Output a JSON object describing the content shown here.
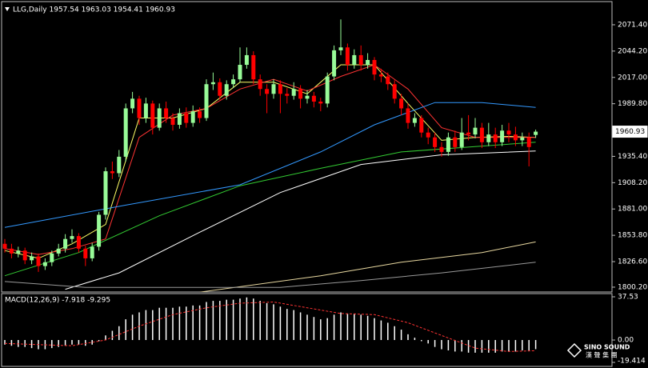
{
  "chart_data": [
    {
      "type": "candlestick",
      "title": "LLG,Daily  1957.54 1963.03 1954.41 1960.93",
      "up_color": "#98fb98",
      "down_color": "#ff0000",
      "open": [
        1845,
        1840,
        1835,
        1838,
        1828,
        1832,
        1822,
        1826,
        1835,
        1840,
        1850,
        1853,
        1840,
        1830,
        1842,
        1875,
        1920,
        1918,
        1935,
        1985,
        1995,
        1975,
        1990,
        1965,
        1985,
        1975,
        1968,
        1980,
        1970,
        1982,
        1975,
        2010,
        2012,
        1998,
        2010,
        2015,
        2030,
        2040,
        2015,
        2005,
        2000,
        2010,
        2000,
        1998,
        2005,
        1995,
        1998,
        1992,
        1990,
        2018,
        2045,
        2048,
        2030,
        2040,
        2030,
        2035,
        2020,
        2018,
        2010,
        1995,
        1985,
        1970,
        1975,
        1960,
        1955,
        1945,
        1940,
        1955,
        1945,
        1960,
        1958,
        1965,
        1950,
        1958,
        1950,
        1962,
        1958,
        1952,
        1955,
        1957.54
      ],
      "high": [
        1850,
        1845,
        1842,
        1841,
        1836,
        1835,
        1830,
        1838,
        1845,
        1855,
        1860,
        1856,
        1843,
        1846,
        1878,
        1924,
        1930,
        1942,
        1990,
        2002,
        1998,
        1996,
        1993,
        1990,
        1992,
        1980,
        1985,
        1986,
        1988,
        1986,
        2015,
        2022,
        2016,
        2014,
        2020,
        2048,
        2048,
        2044,
        2020,
        2010,
        2015,
        2014,
        2006,
        2012,
        2009,
        2004,
        2002,
        1996,
        2022,
        2050,
        2077,
        2052,
        2046,
        2050,
        2042,
        2038,
        2026,
        2022,
        2014,
        2000,
        1990,
        1980,
        1978,
        1965,
        1960,
        1950,
        1960,
        1962,
        1975,
        1978,
        1975,
        1970,
        1970,
        1965,
        1968,
        1970,
        1966,
        1960,
        1960,
        1963.03
      ],
      "low": [
        1836,
        1830,
        1831,
        1824,
        1824,
        1816,
        1818,
        1822,
        1832,
        1836,
        1846,
        1836,
        1822,
        1827,
        1838,
        1870,
        1912,
        1914,
        1930,
        1980,
        1968,
        1970,
        1958,
        1962,
        1970,
        1962,
        1964,
        1965,
        1966,
        1970,
        1972,
        2004,
        1994,
        1994,
        2006,
        2012,
        2026,
        2010,
        1998,
        1980,
        1995,
        1980,
        1990,
        1994,
        1985,
        1990,
        1986,
        1982,
        1986,
        2014,
        2040,
        2024,
        2026,
        2024,
        2026,
        2014,
        2012,
        2004,
        1990,
        1978,
        1964,
        1966,
        1955,
        1948,
        1940,
        1935,
        1936,
        1940,
        1942,
        1952,
        1954,
        1944,
        1946,
        1944,
        1946,
        1950,
        1946,
        1946,
        1925,
        1954.41
      ],
      "close": [
        1840,
        1835,
        1838,
        1828,
        1832,
        1822,
        1826,
        1835,
        1840,
        1850,
        1853,
        1840,
        1830,
        1842,
        1875,
        1920,
        1918,
        1935,
        1985,
        1995,
        1975,
        1990,
        1965,
        1985,
        1975,
        1968,
        1980,
        1970,
        1982,
        1975,
        2010,
        2012,
        1998,
        2010,
        2015,
        2030,
        2040,
        2015,
        2005,
        2000,
        2010,
        2000,
        1998,
        2005,
        1995,
        1998,
        1992,
        1990,
        2018,
        2045,
        2048,
        2030,
        2040,
        2030,
        2035,
        2020,
        2018,
        2010,
        1995,
        1985,
        1970,
        1975,
        1960,
        1955,
        1945,
        1940,
        1955,
        1945,
        1960,
        1958,
        1965,
        1950,
        1958,
        1950,
        1962,
        1958,
        1952,
        1955,
        1945,
        1960.93
      ],
      "series": [
        {
          "color": "#ffff66",
          "x": [
            0,
            5,
            10,
            15,
            20,
            25,
            30,
            35,
            40,
            45,
            50,
            55,
            60,
            65,
            70,
            75,
            79
          ],
          "values": [
            1838,
            1830,
            1845,
            1865,
            1975,
            1975,
            1985,
            2012,
            2012,
            2000,
            2030,
            2030,
            1990,
            1952,
            1955,
            1956,
            1955
          ]
        },
        {
          "color": "#ff3333",
          "x": [
            0,
            5,
            10,
            15,
            20,
            25,
            30,
            35,
            40,
            45,
            50,
            55,
            60,
            65,
            70,
            75,
            79
          ],
          "values": [
            1840,
            1834,
            1840,
            1850,
            1955,
            1978,
            1985,
            2005,
            2015,
            2003,
            2018,
            2030,
            2005,
            1965,
            1955,
            1955,
            1955
          ]
        },
        {
          "color": "#3399ff",
          "x": [
            0,
            18,
            35,
            47,
            55,
            64,
            71,
            79
          ],
          "values": [
            1862,
            1885,
            1906,
            1940,
            1968,
            1991,
            1991,
            1986
          ]
        },
        {
          "color": "#33cc33",
          "x": [
            0,
            11,
            23,
            35,
            47,
            59,
            71,
            79
          ],
          "values": [
            1812,
            1836,
            1874,
            1905,
            1923,
            1940,
            1946,
            1950
          ]
        },
        {
          "color": "#ffffff",
          "x": [
            9,
            17,
            29,
            41,
            53,
            65,
            79
          ],
          "values": [
            1798,
            1815,
            1857,
            1898,
            1927,
            1937,
            1941
          ]
        },
        {
          "color": "#e8d8a0",
          "x": [
            29,
            47,
            59,
            71,
            79
          ],
          "values": [
            1795,
            1812,
            1826,
            1836,
            1847
          ]
        },
        {
          "color": "#999999",
          "x": [
            0,
            12,
            41,
            53,
            65,
            79
          ],
          "values": [
            1806,
            1800,
            1800,
            1807,
            1815,
            1826
          ]
        }
      ],
      "ylim": [
        1795.2,
        2097.0
      ],
      "yticks": [
        {
          "value": 2071.4,
          "label": "2071.40"
        },
        {
          "value": 2044.2,
          "label": "2044.20"
        },
        {
          "value": 2017,
          "label": "2017.00"
        },
        {
          "value": 1989.8,
          "label": "1989.80"
        },
        {
          "value": 1935.4,
          "label": "1935.40"
        },
        {
          "value": 1908.2,
          "label": "1908.20"
        },
        {
          "value": 1881,
          "label": "1881.00"
        },
        {
          "value": 1853.8,
          "label": "1853.80"
        },
        {
          "value": 1826.6,
          "label": "1826.60"
        },
        {
          "value": 1800.2,
          "label": "1800.20"
        }
      ],
      "current_price": 1960.93
    },
    {
      "type": "macd",
      "title": "MACD(12,26,9) -7.918 -9.295",
      "histogram_color": "#ffffff",
      "values": [
        -4,
        -5,
        -6,
        -6,
        -7,
        -8,
        -8,
        -7,
        -6,
        -5,
        -4,
        -4,
        -5,
        -4,
        -1,
        4,
        8,
        12,
        18,
        22,
        24,
        26,
        26,
        28,
        28,
        28,
        29,
        29,
        30,
        30,
        33,
        34,
        34,
        35,
        35,
        36,
        37,
        36,
        34,
        32,
        31,
        29,
        27,
        26,
        24,
        22,
        20,
        18,
        19,
        22,
        24,
        23,
        23,
        22,
        21,
        19,
        17,
        15,
        12,
        9,
        5,
        2,
        -1,
        -3,
        -6,
        -8,
        -9,
        -10,
        -10,
        -11,
        -11,
        -11,
        -11,
        -11,
        -10,
        -10,
        -10,
        -9,
        -9,
        -7.918
      ],
      "signal": {
        "color": "#ff3333",
        "x": [
          0,
          10,
          15,
          20,
          25,
          30,
          35,
          40,
          45,
          50,
          55,
          60,
          65,
          70,
          75,
          79
        ],
        "values": [
          -3,
          -5,
          0,
          12,
          22,
          28,
          32,
          33,
          28,
          23,
          22,
          15,
          4,
          -7,
          -10,
          -9.295
        ]
      },
      "ylim": [
        -22.9,
        40.3
      ],
      "yticks": [
        37.53,
        {
          "value": 0,
          "label": "0.00"
        },
        -19.414
      ]
    }
  ],
  "watermark": "SINO SOUND",
  "watermark_sub": "漢 聲 集 團"
}
